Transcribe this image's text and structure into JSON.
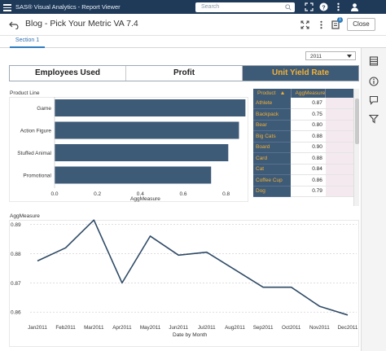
{
  "app": {
    "title": "SAS® Visual Analytics - Report Viewer",
    "search_placeholder": "Search",
    "notification_count": "1"
  },
  "report": {
    "title": "Blog - Pick Your Metric VA 7.4",
    "close_label": "Close"
  },
  "sections": [
    {
      "label": "Section 1",
      "active": true
    }
  ],
  "year_filter": {
    "value": "2011"
  },
  "metric_buttons": [
    {
      "label": "Employees Used",
      "selected": false
    },
    {
      "label": "Profit",
      "selected": false
    },
    {
      "label": "Unit Yield Rate",
      "selected": true
    }
  ],
  "colors": {
    "bar": "#3d5a77",
    "accent": "#f2b035",
    "line": "#2e4a66",
    "appbar": "#1f3a59"
  },
  "bar_chart": {
    "y_title": "Product Line",
    "x_title": "AggMeasure",
    "chart_data": {
      "type": "bar",
      "orientation": "horizontal",
      "categories": [
        "Game",
        "Action Figure",
        "Stuffed Animal",
        "Promotional"
      ],
      "values": [
        0.89,
        0.86,
        0.81,
        0.73
      ],
      "xlim": [
        0,
        0.9
      ],
      "xticks": [
        "0.0",
        "0.2",
        "0.4",
        "0.6",
        "0.8"
      ]
    }
  },
  "crosstab": {
    "headers": [
      "Product",
      "AggMeasure"
    ],
    "sort_icon": "sort-ascending-icon",
    "rows": [
      {
        "product": "Athlete",
        "value": "0.87"
      },
      {
        "product": "Backpack",
        "value": "0.75"
      },
      {
        "product": "Bear",
        "value": "0.80"
      },
      {
        "product": "Big Cats",
        "value": "0.88"
      },
      {
        "product": "Board",
        "value": "0.90"
      },
      {
        "product": "Card",
        "value": "0.88"
      },
      {
        "product": "Cat",
        "value": "0.84"
      },
      {
        "product": "Coffee Cup",
        "value": "0.86"
      },
      {
        "product": "Dog",
        "value": "0.79"
      }
    ]
  },
  "line_chart": {
    "y_title": "AggMeasure",
    "x_title": "Date by Month",
    "chart_data": {
      "type": "line",
      "x": [
        "Jan2011",
        "Feb2011",
        "Mar2011",
        "Apr2011",
        "May2011",
        "Jun2011",
        "Jul2011",
        "Aug2011",
        "Sep2011",
        "Oct2011",
        "Nov2011",
        "Dec2011"
      ],
      "values": [
        0.8775,
        0.882,
        0.8915,
        0.87,
        0.886,
        0.8795,
        0.8805,
        0.8745,
        0.8685,
        0.8685,
        0.862,
        0.859
      ],
      "ylim": [
        0.857,
        0.891
      ],
      "yticks": [
        "0.86",
        "0.87",
        "0.88",
        "0.89"
      ],
      "grid": true
    }
  }
}
